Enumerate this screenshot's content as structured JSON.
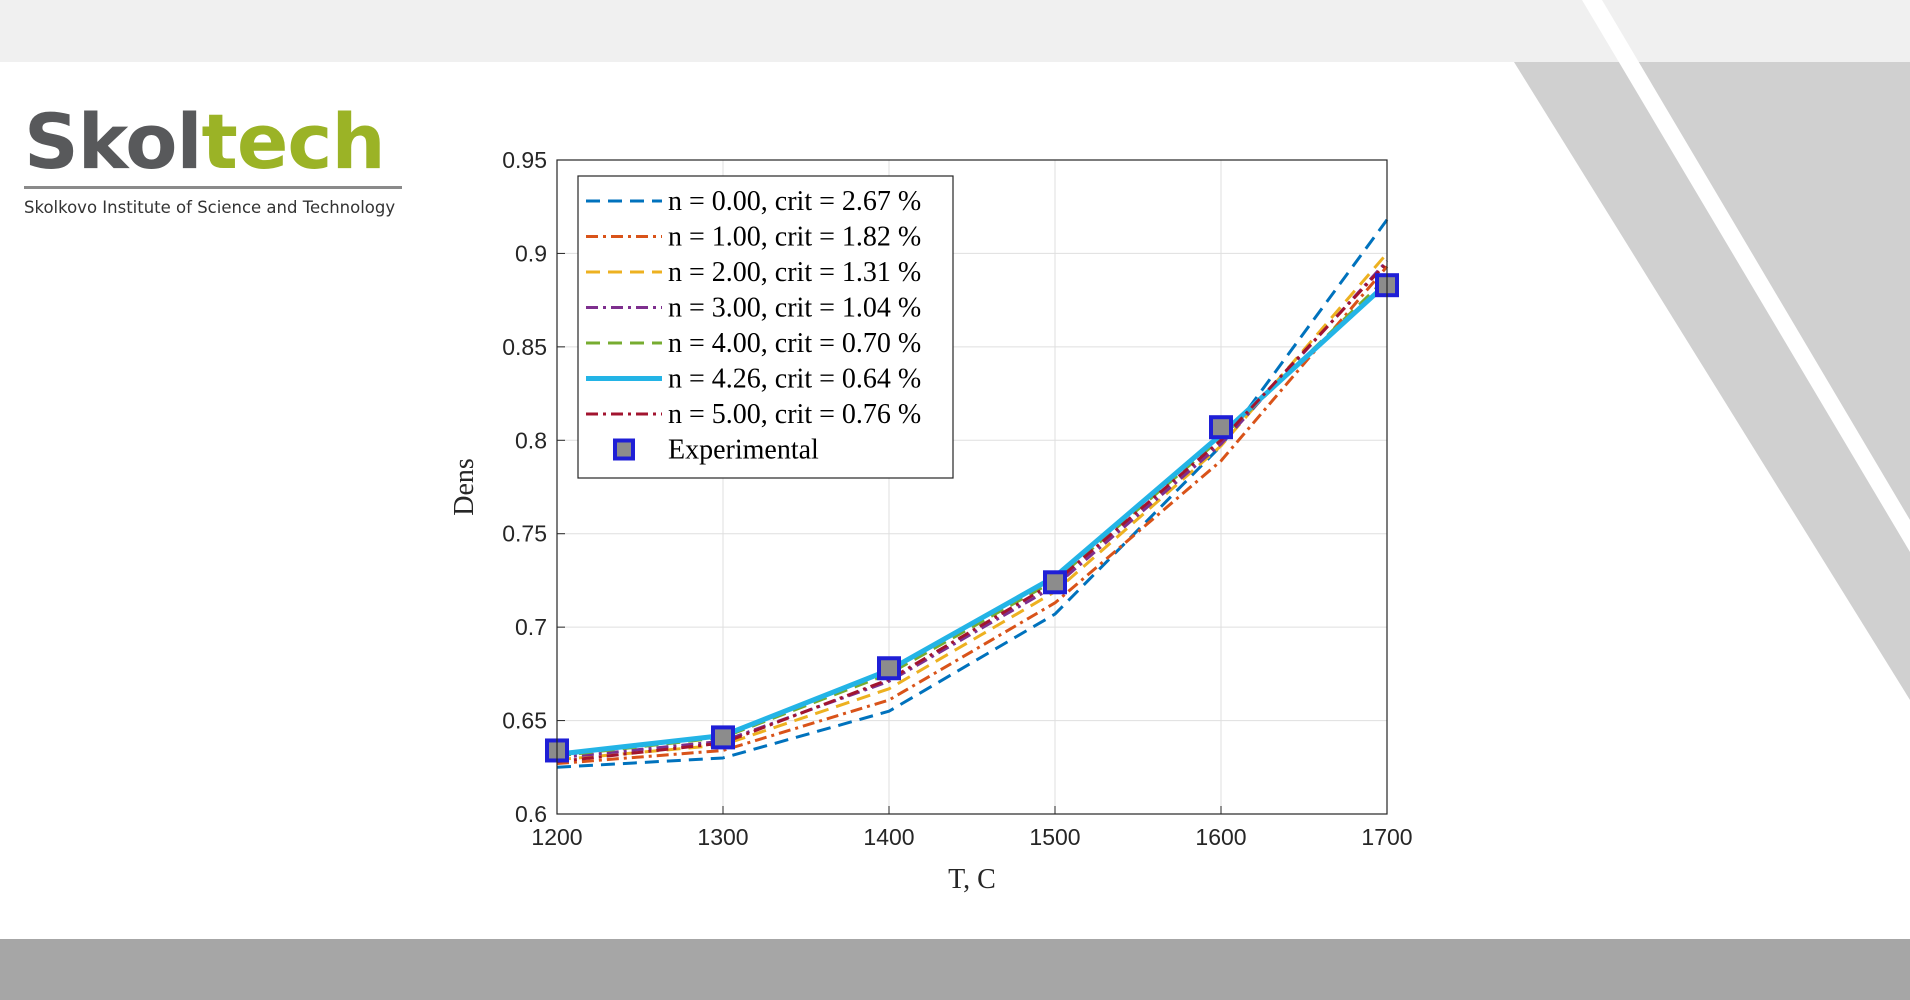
{
  "logo": {
    "word_dark": "Skol",
    "word_green": "tech",
    "subtitle": "Skolkovo Institute of Science and Technology"
  },
  "colors": {
    "brand_green": "#9bb326",
    "brand_gray": "#58595b",
    "top_band": "#f0f0f0",
    "bottom_band": "#a6a6a6",
    "deco_gray": "#d0d0d0"
  },
  "chart_data": {
    "type": "line",
    "xlabel": "T, C",
    "ylabel": "Dens",
    "xlim": [
      1200,
      1700
    ],
    "ylim": [
      0.6,
      0.95
    ],
    "xticks": [
      1200,
      1300,
      1400,
      1500,
      1600,
      1700
    ],
    "xtick_labels": [
      "1200",
      "1300",
      "1400",
      "1500",
      "1600",
      "1700"
    ],
    "yticks": [
      0.6,
      0.65,
      0.7,
      0.75,
      0.8,
      0.85,
      0.9,
      0.95
    ],
    "ytick_labels": [
      "0.6",
      "0.65",
      "0.7",
      "0.75",
      "0.8",
      "0.85",
      "0.9",
      "0.95"
    ],
    "grid": true,
    "legend_position": "top-left",
    "x": [
      1200,
      1300,
      1400,
      1500,
      1600,
      1700
    ],
    "series": [
      {
        "name": "n = 0.00, crit = 2.67 %",
        "values": [
          0.625,
          0.63,
          0.655,
          0.707,
          0.797,
          0.918
        ],
        "color": "#0072BD",
        "dash": "dashed",
        "width": 3
      },
      {
        "name": "n = 1.00, crit = 1.82 %",
        "values": [
          0.627,
          0.634,
          0.661,
          0.713,
          0.789,
          0.893
        ],
        "color": "#D95319",
        "dash": "dashdot",
        "width": 3
      },
      {
        "name": "n = 2.00, crit = 1.31 %",
        "values": [
          0.629,
          0.637,
          0.667,
          0.719,
          0.797,
          0.9
        ],
        "color": "#EDB120",
        "dash": "dashed",
        "width": 3
      },
      {
        "name": "n = 3.00, crit = 1.04 %",
        "values": [
          0.63,
          0.639,
          0.671,
          0.722,
          0.798,
          0.896
        ],
        "color": "#7E2F8E",
        "dash": "dashdot",
        "width": 3
      },
      {
        "name": "n = 4.00, crit = 0.70 %",
        "values": [
          0.631,
          0.641,
          0.675,
          0.725,
          0.801,
          0.887
        ],
        "color": "#77AC30",
        "dash": "dashed",
        "width": 3
      },
      {
        "name": "n = 4.26, crit = 0.64 %",
        "values": [
          0.632,
          0.642,
          0.677,
          0.727,
          0.803,
          0.884
        ],
        "color": "#23B4E6",
        "dash": "solid",
        "width": 5
      },
      {
        "name": "n = 5.00, crit = 0.76 %",
        "values": [
          0.628,
          0.638,
          0.672,
          0.724,
          0.8,
          0.895
        ],
        "color": "#A2142F",
        "dash": "dashdot",
        "width": 3
      }
    ],
    "markers": {
      "name": "Experimental",
      "values": [
        0.634,
        0.641,
        0.678,
        0.724,
        0.807,
        0.883
      ],
      "fill": "#8c8c8c",
      "edge": "#1f1fd6"
    }
  }
}
